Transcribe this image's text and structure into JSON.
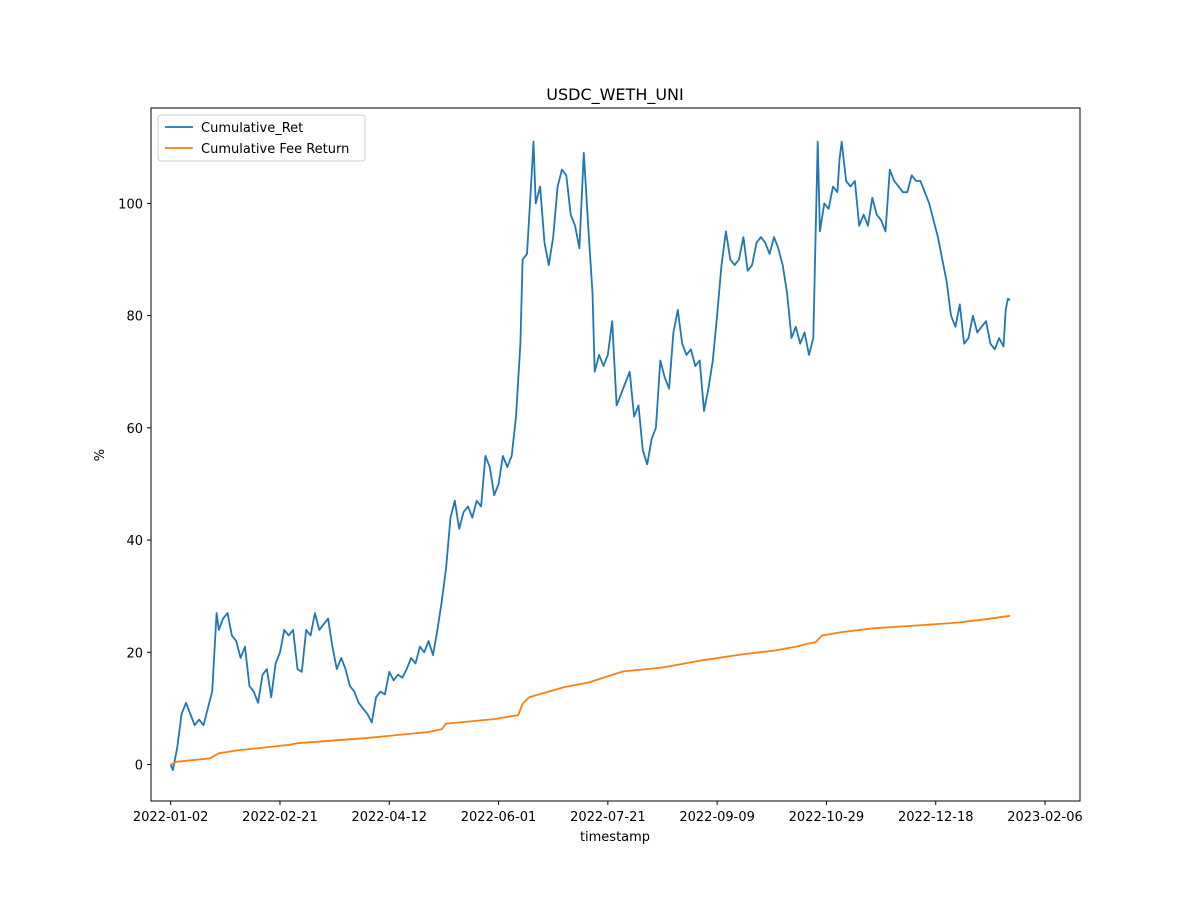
{
  "chart_data": {
    "type": "line",
    "title": "USDC_WETH_UNI",
    "xlabel": "timestamp",
    "ylabel": "%",
    "x_range": [
      "2021-12-24",
      "2023-02-22"
    ],
    "ylim": [
      -6.5,
      117
    ],
    "xticks": [
      "2022-01-02",
      "2022-02-21",
      "2022-04-12",
      "2022-06-01",
      "2022-07-21",
      "2022-09-09",
      "2022-10-29",
      "2022-12-18",
      "2023-02-06"
    ],
    "yticks": [
      0,
      20,
      40,
      60,
      80,
      100
    ],
    "grid": false,
    "legend_position": "top-left",
    "series": [
      {
        "name": "Cumulative_Ret",
        "color": "#1f77b4",
        "points": [
          [
            "2022-01-02",
            0
          ],
          [
            "2022-01-03",
            -1
          ],
          [
            "2022-01-05",
            3
          ],
          [
            "2022-01-07",
            9
          ],
          [
            "2022-01-09",
            11
          ],
          [
            "2022-01-11",
            9
          ],
          [
            "2022-01-13",
            7
          ],
          [
            "2022-01-15",
            8
          ],
          [
            "2022-01-17",
            7
          ],
          [
            "2022-01-19",
            10
          ],
          [
            "2022-01-21",
            13
          ],
          [
            "2022-01-22",
            20
          ],
          [
            "2022-01-23",
            27
          ],
          [
            "2022-01-24",
            24
          ],
          [
            "2022-01-26",
            26
          ],
          [
            "2022-01-28",
            27
          ],
          [
            "2022-01-30",
            23
          ],
          [
            "2022-02-01",
            22
          ],
          [
            "2022-02-03",
            19
          ],
          [
            "2022-02-05",
            21
          ],
          [
            "2022-02-07",
            14
          ],
          [
            "2022-02-09",
            13
          ],
          [
            "2022-02-11",
            11
          ],
          [
            "2022-02-13",
            16
          ],
          [
            "2022-02-15",
            17
          ],
          [
            "2022-02-17",
            12
          ],
          [
            "2022-02-19",
            18
          ],
          [
            "2022-02-21",
            20
          ],
          [
            "2022-02-23",
            24
          ],
          [
            "2022-02-25",
            23
          ],
          [
            "2022-02-27",
            24
          ],
          [
            "2022-03-01",
            17
          ],
          [
            "2022-03-03",
            16.5
          ],
          [
            "2022-03-05",
            24
          ],
          [
            "2022-03-07",
            23
          ],
          [
            "2022-03-09",
            27
          ],
          [
            "2022-03-11",
            24
          ],
          [
            "2022-03-13",
            25
          ],
          [
            "2022-03-15",
            26
          ],
          [
            "2022-03-17",
            21
          ],
          [
            "2022-03-19",
            17
          ],
          [
            "2022-03-21",
            19
          ],
          [
            "2022-03-23",
            17
          ],
          [
            "2022-03-25",
            14
          ],
          [
            "2022-03-27",
            13
          ],
          [
            "2022-03-29",
            11
          ],
          [
            "2022-03-31",
            10
          ],
          [
            "2022-04-02",
            9
          ],
          [
            "2022-04-04",
            7.5
          ],
          [
            "2022-04-06",
            12
          ],
          [
            "2022-04-08",
            13
          ],
          [
            "2022-04-10",
            12.5
          ],
          [
            "2022-04-12",
            16.5
          ],
          [
            "2022-04-14",
            15
          ],
          [
            "2022-04-16",
            16
          ],
          [
            "2022-04-18",
            15.5
          ],
          [
            "2022-04-20",
            17
          ],
          [
            "2022-04-22",
            19
          ],
          [
            "2022-04-24",
            18
          ],
          [
            "2022-04-26",
            21
          ],
          [
            "2022-04-28",
            20
          ],
          [
            "2022-04-30",
            22
          ],
          [
            "2022-05-02",
            19.5
          ],
          [
            "2022-05-04",
            24
          ],
          [
            "2022-05-06",
            29
          ],
          [
            "2022-05-08",
            35
          ],
          [
            "2022-05-10",
            44
          ],
          [
            "2022-05-12",
            47
          ],
          [
            "2022-05-14",
            42
          ],
          [
            "2022-05-16",
            45
          ],
          [
            "2022-05-18",
            46
          ],
          [
            "2022-05-20",
            44
          ],
          [
            "2022-05-22",
            47
          ],
          [
            "2022-05-24",
            46
          ],
          [
            "2022-05-26",
            55
          ],
          [
            "2022-05-28",
            53
          ],
          [
            "2022-05-30",
            48
          ],
          [
            "2022-06-01",
            50
          ],
          [
            "2022-06-03",
            55
          ],
          [
            "2022-06-05",
            53
          ],
          [
            "2022-06-07",
            55
          ],
          [
            "2022-06-09",
            62
          ],
          [
            "2022-06-11",
            75
          ],
          [
            "2022-06-12",
            90
          ],
          [
            "2022-06-14",
            91
          ],
          [
            "2022-06-16",
            104
          ],
          [
            "2022-06-17",
            111
          ],
          [
            "2022-06-18",
            100
          ],
          [
            "2022-06-20",
            103
          ],
          [
            "2022-06-22",
            93
          ],
          [
            "2022-06-24",
            89
          ],
          [
            "2022-06-26",
            94
          ],
          [
            "2022-06-28",
            103
          ],
          [
            "2022-06-30",
            106
          ],
          [
            "2022-07-02",
            105
          ],
          [
            "2022-07-04",
            98
          ],
          [
            "2022-07-06",
            96
          ],
          [
            "2022-07-08",
            92
          ],
          [
            "2022-07-10",
            109
          ],
          [
            "2022-07-12",
            96
          ],
          [
            "2022-07-14",
            84
          ],
          [
            "2022-07-15",
            70
          ],
          [
            "2022-07-17",
            73
          ],
          [
            "2022-07-19",
            71
          ],
          [
            "2022-07-21",
            73
          ],
          [
            "2022-07-23",
            79
          ],
          [
            "2022-07-25",
            64
          ],
          [
            "2022-07-27",
            66
          ],
          [
            "2022-07-29",
            68
          ],
          [
            "2022-07-31",
            70
          ],
          [
            "2022-08-02",
            62
          ],
          [
            "2022-08-04",
            64
          ],
          [
            "2022-08-06",
            56
          ],
          [
            "2022-08-08",
            53.5
          ],
          [
            "2022-08-10",
            58
          ],
          [
            "2022-08-12",
            60
          ],
          [
            "2022-08-14",
            72
          ],
          [
            "2022-08-16",
            69
          ],
          [
            "2022-08-18",
            67
          ],
          [
            "2022-08-20",
            77
          ],
          [
            "2022-08-22",
            81
          ],
          [
            "2022-08-24",
            75
          ],
          [
            "2022-08-26",
            73
          ],
          [
            "2022-08-28",
            74
          ],
          [
            "2022-08-30",
            71
          ],
          [
            "2022-09-01",
            72
          ],
          [
            "2022-09-03",
            63
          ],
          [
            "2022-09-05",
            67
          ],
          [
            "2022-09-07",
            72
          ],
          [
            "2022-09-09",
            80
          ],
          [
            "2022-09-11",
            89
          ],
          [
            "2022-09-13",
            95
          ],
          [
            "2022-09-15",
            90
          ],
          [
            "2022-09-17",
            89
          ],
          [
            "2022-09-19",
            90
          ],
          [
            "2022-09-21",
            94
          ],
          [
            "2022-09-23",
            88
          ],
          [
            "2022-09-25",
            89
          ],
          [
            "2022-09-27",
            93
          ],
          [
            "2022-09-29",
            94
          ],
          [
            "2022-10-01",
            93
          ],
          [
            "2022-10-03",
            91
          ],
          [
            "2022-10-05",
            94
          ],
          [
            "2022-10-07",
            92
          ],
          [
            "2022-10-09",
            89
          ],
          [
            "2022-10-11",
            84
          ],
          [
            "2022-10-13",
            76
          ],
          [
            "2022-10-15",
            78
          ],
          [
            "2022-10-17",
            75
          ],
          [
            "2022-10-19",
            77
          ],
          [
            "2022-10-21",
            73
          ],
          [
            "2022-10-23",
            76
          ],
          [
            "2022-10-25",
            111
          ],
          [
            "2022-10-26",
            95
          ],
          [
            "2022-10-28",
            100
          ],
          [
            "2022-10-30",
            99
          ],
          [
            "2022-11-01",
            103
          ],
          [
            "2022-11-03",
            102
          ],
          [
            "2022-11-04",
            108
          ],
          [
            "2022-11-05",
            111
          ],
          [
            "2022-11-07",
            104
          ],
          [
            "2022-11-09",
            103
          ],
          [
            "2022-11-11",
            104
          ],
          [
            "2022-11-13",
            96
          ],
          [
            "2022-11-15",
            98
          ],
          [
            "2022-11-17",
            96
          ],
          [
            "2022-11-19",
            101
          ],
          [
            "2022-11-21",
            98
          ],
          [
            "2022-11-23",
            97
          ],
          [
            "2022-11-25",
            95
          ],
          [
            "2022-11-27",
            106
          ],
          [
            "2022-11-29",
            104
          ],
          [
            "2022-12-01",
            103
          ],
          [
            "2022-12-03",
            102
          ],
          [
            "2022-12-05",
            102
          ],
          [
            "2022-12-07",
            105
          ],
          [
            "2022-12-09",
            104
          ],
          [
            "2022-12-11",
            104
          ],
          [
            "2022-12-13",
            102
          ],
          [
            "2022-12-15",
            100
          ],
          [
            "2022-12-17",
            97
          ],
          [
            "2022-12-19",
            94
          ],
          [
            "2022-12-21",
            90
          ],
          [
            "2022-12-23",
            86
          ],
          [
            "2022-12-25",
            80
          ],
          [
            "2022-12-27",
            78
          ],
          [
            "2022-12-29",
            82
          ],
          [
            "2022-12-31",
            75
          ],
          [
            "2023-01-02",
            76
          ],
          [
            "2023-01-04",
            80
          ],
          [
            "2023-01-06",
            77
          ],
          [
            "2023-01-08",
            78
          ],
          [
            "2023-01-10",
            79
          ],
          [
            "2023-01-12",
            75
          ],
          [
            "2023-01-14",
            74
          ],
          [
            "2023-01-16",
            76
          ],
          [
            "2023-01-18",
            74.5
          ],
          [
            "2023-01-19",
            81
          ],
          [
            "2023-01-20",
            83
          ],
          [
            "2023-01-21",
            82.8
          ]
        ]
      },
      {
        "name": "Cumulative Fee Return",
        "color": "#ff7f0e",
        "points": [
          [
            "2022-01-02",
            0
          ],
          [
            "2022-01-05",
            0.5
          ],
          [
            "2022-01-20",
            1.1
          ],
          [
            "2022-01-24",
            2
          ],
          [
            "2022-02-01",
            2.5
          ],
          [
            "2022-02-25",
            3.5
          ],
          [
            "2022-03-01",
            3.8
          ],
          [
            "2022-04-01",
            4.7
          ],
          [
            "2022-04-30",
            5.8
          ],
          [
            "2022-05-06",
            6.3
          ],
          [
            "2022-05-08",
            7.3
          ],
          [
            "2022-05-30",
            8.1
          ],
          [
            "2022-06-10",
            8.8
          ],
          [
            "2022-06-12",
            10.8
          ],
          [
            "2022-06-15",
            12
          ],
          [
            "2022-07-01",
            13.8
          ],
          [
            "2022-07-12",
            14.6
          ],
          [
            "2022-07-28",
            16.6
          ],
          [
            "2022-08-15",
            17.3
          ],
          [
            "2022-09-01",
            18.5
          ],
          [
            "2022-09-20",
            19.6
          ],
          [
            "2022-10-05",
            20.3
          ],
          [
            "2022-10-15",
            21
          ],
          [
            "2022-10-20",
            21.5
          ],
          [
            "2022-10-24",
            21.8
          ],
          [
            "2022-10-27",
            23
          ],
          [
            "2022-11-05",
            23.6
          ],
          [
            "2022-11-20",
            24.3
          ],
          [
            "2022-12-10",
            24.8
          ],
          [
            "2022-12-28",
            25.3
          ],
          [
            "2023-01-10",
            25.9
          ],
          [
            "2023-01-21",
            26.5
          ]
        ]
      }
    ]
  }
}
